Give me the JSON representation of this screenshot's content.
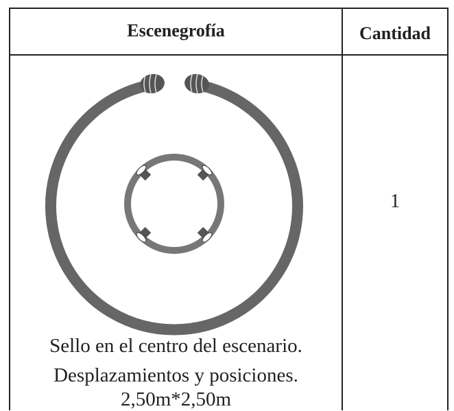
{
  "table": {
    "headers": [
      "Escenegrofía",
      "Cantidad"
    ],
    "rows": [
      {
        "description": [
          "Sello en el centro del escenario.",
          "Desplazamientos y posiciones.",
          "2,50m*2,50m"
        ],
        "quantity": "1"
      }
    ]
  }
}
